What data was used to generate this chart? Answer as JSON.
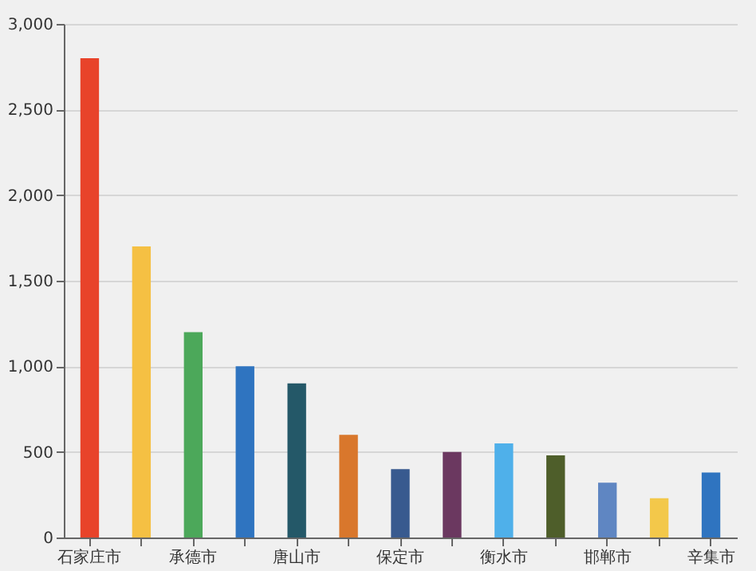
{
  "chart_data": {
    "type": "bar",
    "categories": [
      "石家庄市",
      null,
      "承德市",
      null,
      "唐山市",
      null,
      "保定市",
      null,
      "衡水市",
      null,
      "邯郸市",
      null,
      "辛集市"
    ],
    "values": [
      2800,
      1700,
      1200,
      1000,
      900,
      600,
      400,
      500,
      550,
      480,
      320,
      230,
      380
    ],
    "colors": [
      "#e8432a",
      "#f5c043",
      "#4ca85a",
      "#2f74c0",
      "#245868",
      "#d9772c",
      "#385a8f",
      "#6b3860",
      "#4fb0ea",
      "#4e5e2a",
      "#5f86c2",
      "#f3c84a",
      "#2f74c0"
    ],
    "ylim": [
      0,
      3000
    ],
    "yticks": [
      0,
      {
        "value": 500,
        "label": "500"
      },
      {
        "value": 1000,
        "label": "1,000"
      },
      {
        "value": 1500,
        "label": "1,500"
      },
      {
        "value": 2000,
        "label": "2,000"
      },
      {
        "value": 2500,
        "label": "2,500"
      },
      {
        "value": 3000,
        "label": "3,000"
      }
    ],
    "grid": "y"
  }
}
